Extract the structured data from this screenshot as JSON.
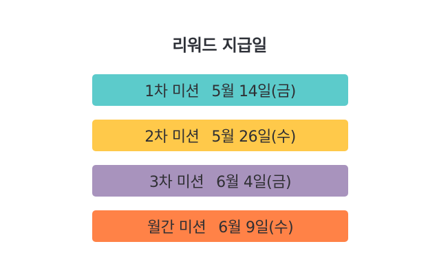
{
  "title": "리워드 지급일",
  "rows": [
    {
      "mission": "1차 미션",
      "date": "5월 14일(금)",
      "color": "#5ccbcb"
    },
    {
      "mission": "2차 미션",
      "date": "5월 26일(수)",
      "color": "#ffc94a"
    },
    {
      "mission": "3차 미션",
      "date": "6월 4일(금)",
      "color": "#a893bd"
    },
    {
      "mission": "월간 미션",
      "date": "6월 9일(수)",
      "color": "#ff8247"
    }
  ]
}
